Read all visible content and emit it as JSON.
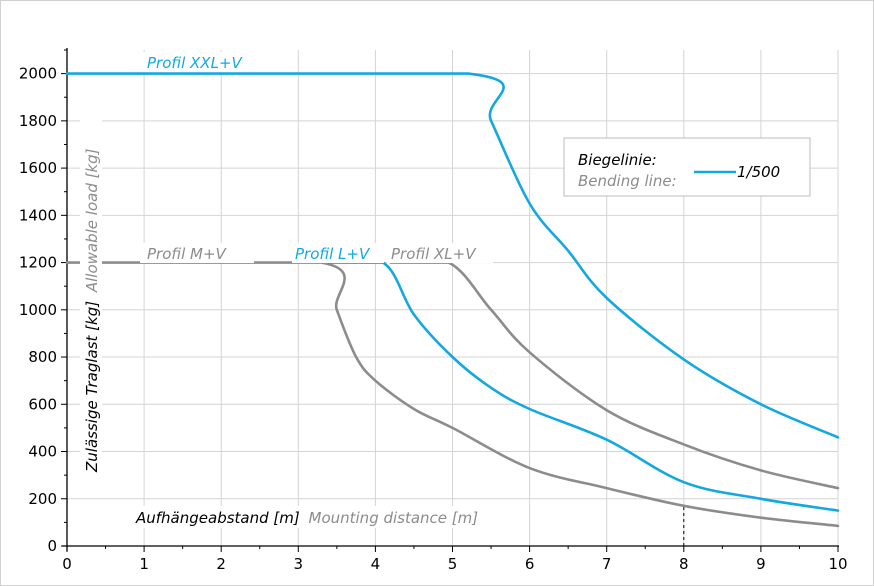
{
  "chart_data": {
    "type": "line",
    "xlabel": "Aufhängeabstand [m]",
    "xlabel_en": "Mounting distance [m]",
    "ylabel": "Zulässige Traglast [kg]",
    "ylabel_en": "Allowable load [kg]",
    "xlim": [
      0,
      10
    ],
    "ylim": [
      0,
      2100
    ],
    "x_ticks": [
      "0",
      "1",
      "2",
      "3",
      "4",
      "5",
      "6",
      "7",
      "8",
      "9",
      "10"
    ],
    "y_ticks": [
      "0",
      "200",
      "400",
      "600",
      "800",
      "1000",
      "1200",
      "1400",
      "1600",
      "1800",
      "2000"
    ],
    "grid": true,
    "legend": {
      "placement": "top-right",
      "title_de": "Biegelinie:",
      "title_en": "Bending line:",
      "entry": "1/500"
    },
    "series": [
      {
        "name": "Profil M+V",
        "color": "#8c8c8c",
        "points": [
          [
            0,
            1200
          ],
          [
            3.3,
            1200
          ],
          [
            3.5,
            1000
          ],
          [
            3.75,
            800
          ],
          [
            4,
            700
          ],
          [
            4.5,
            580
          ],
          [
            5,
            500
          ],
          [
            6,
            330
          ],
          [
            7,
            245
          ],
          [
            8,
            170
          ],
          [
            9,
            120
          ],
          [
            10,
            85
          ]
        ]
      },
      {
        "name": "Profil L+V",
        "color": "#13a8e0",
        "points": [
          [
            3.4,
            1200
          ],
          [
            4.1,
            1200
          ],
          [
            4.5,
            980
          ],
          [
            5,
            800
          ],
          [
            5.5,
            670
          ],
          [
            6,
            580
          ],
          [
            7,
            450
          ],
          [
            8,
            270
          ],
          [
            9,
            200
          ],
          [
            10,
            150
          ]
        ]
      },
      {
        "name": "Profil XL+V",
        "color": "#8c8c8c",
        "points": [
          [
            4.2,
            1200
          ],
          [
            4.95,
            1200
          ],
          [
            5.5,
            1000
          ],
          [
            6,
            820
          ],
          [
            7,
            575
          ],
          [
            8,
            430
          ],
          [
            9,
            320
          ],
          [
            10,
            245
          ]
        ]
      },
      {
        "name": "Profil XXL+V",
        "color": "#13a8e0",
        "points": [
          [
            0,
            2000
          ],
          [
            5.2,
            2000
          ],
          [
            5.5,
            1800
          ],
          [
            6,
            1450
          ],
          [
            6.5,
            1250
          ],
          [
            7,
            1050
          ],
          [
            8,
            790
          ],
          [
            9,
            600
          ],
          [
            10,
            460
          ]
        ]
      }
    ],
    "annotations": [
      {
        "type": "vline-dashed",
        "x": 8,
        "y_from": 0,
        "y_to": 170
      }
    ],
    "colors": {
      "accent": "#13a8e0",
      "secondary": "#8c8c8c",
      "grid": "#d4d4d4",
      "axis": "#000000"
    }
  }
}
